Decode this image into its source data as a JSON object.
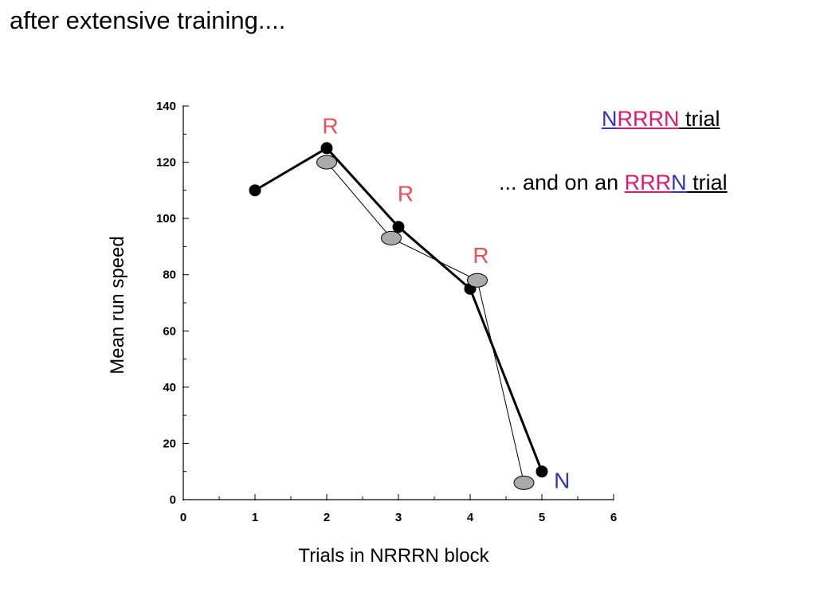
{
  "heading": "after extensive training....",
  "colors": {
    "R": "#e8505b",
    "N": "#3333bb",
    "pink": "#e0196e",
    "grey_marker": "#aaaaaa"
  },
  "legend": {
    "line1": {
      "parts": [
        {
          "text": "N",
          "color": "N",
          "underline": true
        },
        {
          "text": "RRRN",
          "color": "pink",
          "underline": true
        },
        {
          "text": " trial",
          "color": "black",
          "underline": true
        }
      ]
    },
    "line2": {
      "parts": [
        {
          "text": "... and on an ",
          "color": "black",
          "underline": false
        },
        {
          "text": "RRR",
          "color": "pink",
          "underline": true
        },
        {
          "text": "N",
          "color": "N",
          "underline": true
        },
        {
          "text": " trial",
          "color": "black",
          "underline": true
        }
      ]
    }
  },
  "chart_data": {
    "type": "line",
    "title": "",
    "xlabel": "Trials in NRRRN block",
    "ylabel": "Mean run speed",
    "xlim": [
      0,
      6
    ],
    "ylim": [
      0,
      140
    ],
    "xticks": [
      0,
      1,
      2,
      3,
      4,
      5,
      6
    ],
    "yticks": [
      0,
      20,
      40,
      60,
      80,
      100,
      120,
      140
    ],
    "grid": false,
    "series": [
      {
        "marker": "filled-circle",
        "line": "thick",
        "points": [
          [
            1,
            110
          ],
          [
            2,
            125
          ],
          [
            3,
            97
          ],
          [
            4,
            75
          ],
          [
            5,
            10
          ]
        ]
      },
      {
        "marker": "grey-ellipse",
        "line": "thin",
        "points": [
          [
            2,
            120
          ],
          [
            2.9,
            93
          ],
          [
            4.1,
            78
          ],
          [
            4.75,
            6
          ]
        ]
      }
    ],
    "annotations": [
      {
        "text": "R",
        "x": 2.05,
        "y": 133,
        "color": "R"
      },
      {
        "text": "R",
        "x": 3.1,
        "y": 109,
        "color": "R"
      },
      {
        "text": "R",
        "x": 4.15,
        "y": 87,
        "color": "R"
      },
      {
        "text": "N",
        "x": 5.28,
        "y": 7,
        "color": "N"
      }
    ]
  }
}
